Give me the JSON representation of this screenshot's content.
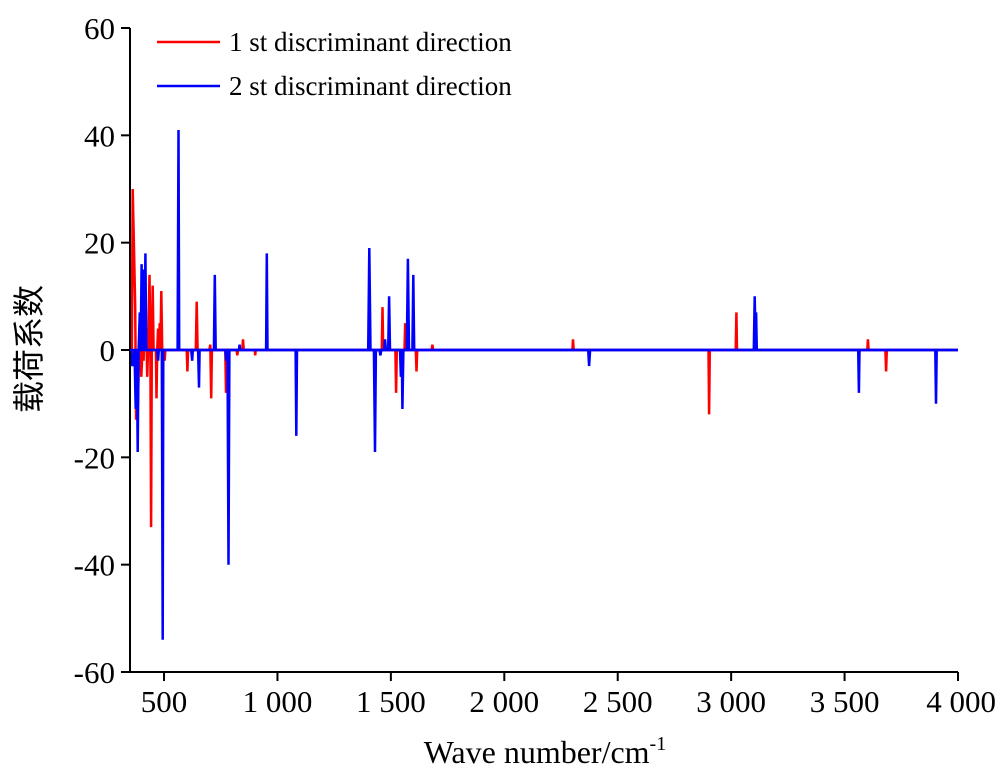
{
  "chart_data": {
    "type": "line",
    "title": "",
    "xlabel": "Wave number/cm",
    "xlabel_superscript": "-1",
    "ylabel": "载荷系数",
    "xlim": [
      350,
      4000
    ],
    "ylim": [
      -60,
      60
    ],
    "x_ticks": [
      500,
      1000,
      1500,
      2000,
      2500,
      3000,
      3500,
      4000
    ],
    "x_tick_labels": [
      "500",
      "1 000",
      "1 500",
      "2 000",
      "2 500",
      "3 000",
      "3 500",
      "4 000"
    ],
    "y_ticks": [
      60,
      40,
      20,
      0,
      -20,
      -40,
      -60
    ],
    "y_tick_labels": [
      "60",
      "40",
      "20",
      "0",
      "-20",
      "-40",
      "-60"
    ],
    "grid": false,
    "legend_position": "top-left",
    "series": [
      {
        "name": "1 st discriminant direction",
        "color": "#ff0000",
        "points": [
          [
            355,
            0
          ],
          [
            358,
            -2
          ],
          [
            362,
            30
          ],
          [
            368,
            18
          ],
          [
            373,
            8
          ],
          [
            377,
            -13
          ],
          [
            381,
            -3
          ],
          [
            385,
            -10
          ],
          [
            390,
            0
          ],
          [
            395,
            4
          ],
          [
            400,
            -5
          ],
          [
            405,
            0
          ],
          [
            410,
            -2
          ],
          [
            414,
            6
          ],
          [
            418,
            0
          ],
          [
            422,
            4
          ],
          [
            426,
            -5
          ],
          [
            430,
            0
          ],
          [
            436,
            14
          ],
          [
            440,
            0
          ],
          [
            443,
            -33
          ],
          [
            446,
            0
          ],
          [
            450,
            12
          ],
          [
            454,
            0
          ],
          [
            464,
            0
          ],
          [
            467,
            -9
          ],
          [
            470,
            0
          ],
          [
            474,
            4
          ],
          [
            477,
            0
          ],
          [
            481,
            5
          ],
          [
            484,
            0
          ],
          [
            488,
            11
          ],
          [
            492,
            0
          ],
          [
            500,
            0
          ],
          [
            503,
            -2
          ],
          [
            506,
            0
          ],
          [
            600,
            0
          ],
          [
            603,
            -4
          ],
          [
            606,
            0
          ],
          [
            640,
            0
          ],
          [
            644,
            9
          ],
          [
            648,
            0
          ],
          [
            700,
            0
          ],
          [
            704,
            1
          ],
          [
            708,
            -9
          ],
          [
            711,
            0
          ],
          [
            770,
            0
          ],
          [
            773,
            -8
          ],
          [
            776,
            0
          ],
          [
            820,
            0
          ],
          [
            823,
            -1
          ],
          [
            826,
            0
          ],
          [
            845,
            0
          ],
          [
            848,
            2
          ],
          [
            851,
            0
          ],
          [
            900,
            0
          ],
          [
            902,
            -1
          ],
          [
            904,
            0
          ],
          [
            1460,
            0
          ],
          [
            1463,
            8
          ],
          [
            1466,
            0
          ],
          [
            1520,
            0
          ],
          [
            1523,
            -8
          ],
          [
            1526,
            0
          ],
          [
            1560,
            0
          ],
          [
            1563,
            5
          ],
          [
            1566,
            0
          ],
          [
            1610,
            0
          ],
          [
            1613,
            -4
          ],
          [
            1616,
            0
          ],
          [
            1680,
            0
          ],
          [
            1683,
            1
          ],
          [
            1686,
            0
          ],
          [
            2300,
            0
          ],
          [
            2303,
            2
          ],
          [
            2306,
            0
          ],
          [
            2900,
            0
          ],
          [
            2903,
            -12
          ],
          [
            2906,
            0
          ],
          [
            3020,
            0
          ],
          [
            3023,
            7
          ],
          [
            3026,
            0
          ],
          [
            3600,
            0
          ],
          [
            3603,
            2
          ],
          [
            3606,
            0
          ],
          [
            3680,
            0
          ],
          [
            3683,
            -4
          ],
          [
            3686,
            0
          ],
          [
            4000,
            0
          ]
        ]
      },
      {
        "name": "2 st discriminant direction",
        "color": "#0000ff",
        "points": [
          [
            355,
            0
          ],
          [
            360,
            -3
          ],
          [
            365,
            -2
          ],
          [
            370,
            0
          ],
          [
            375,
            -11
          ],
          [
            380,
            0
          ],
          [
            384,
            -19
          ],
          [
            388,
            0
          ],
          [
            393,
            7
          ],
          [
            397,
            0
          ],
          [
            401,
            16
          ],
          [
            405,
            0
          ],
          [
            410,
            15
          ],
          [
            414,
            0
          ],
          [
            418,
            18
          ],
          [
            422,
            0
          ],
          [
            470,
            0
          ],
          [
            474,
            -2
          ],
          [
            477,
            0
          ],
          [
            490,
            0
          ],
          [
            494,
            -54
          ],
          [
            497,
            0
          ],
          [
            560,
            0
          ],
          [
            564,
            41
          ],
          [
            567,
            0
          ],
          [
            620,
            0
          ],
          [
            624,
            -2
          ],
          [
            627,
            0
          ],
          [
            650,
            0
          ],
          [
            654,
            -7
          ],
          [
            657,
            0
          ],
          [
            720,
            0
          ],
          [
            724,
            14
          ],
          [
            728,
            0
          ],
          [
            770,
            0
          ],
          [
            774,
            -2
          ],
          [
            777,
            0
          ],
          [
            780,
            0
          ],
          [
            784,
            -40
          ],
          [
            788,
            0
          ],
          [
            830,
            0
          ],
          [
            833,
            1
          ],
          [
            836,
            0
          ],
          [
            950,
            0
          ],
          [
            953,
            18
          ],
          [
            956,
            0
          ],
          [
            1080,
            0
          ],
          [
            1083,
            -16
          ],
          [
            1086,
            0
          ],
          [
            1400,
            0
          ],
          [
            1405,
            19
          ],
          [
            1410,
            0
          ],
          [
            1425,
            0
          ],
          [
            1430,
            -19
          ],
          [
            1434,
            0
          ],
          [
            1450,
            0
          ],
          [
            1454,
            -1
          ],
          [
            1458,
            0
          ],
          [
            1470,
            0
          ],
          [
            1474,
            2
          ],
          [
            1478,
            0
          ],
          [
            1488,
            0
          ],
          [
            1492,
            10
          ],
          [
            1496,
            0
          ],
          [
            1540,
            0
          ],
          [
            1544,
            -5
          ],
          [
            1548,
            0
          ],
          [
            1551,
            -11
          ],
          [
            1555,
            0
          ],
          [
            1570,
            0
          ],
          [
            1575,
            17
          ],
          [
            1580,
            0
          ],
          [
            1595,
            0
          ],
          [
            1599,
            14
          ],
          [
            1603,
            0
          ],
          [
            2370,
            0
          ],
          [
            2374,
            -3
          ],
          [
            2378,
            0
          ],
          [
            3100,
            0
          ],
          [
            3104,
            10
          ],
          [
            3108,
            0
          ],
          [
            3110,
            7
          ],
          [
            3113,
            0
          ],
          [
            3560,
            0
          ],
          [
            3563,
            -8
          ],
          [
            3566,
            0
          ],
          [
            3900,
            0
          ],
          [
            3903,
            -10
          ],
          [
            3906,
            0
          ],
          [
            4000,
            0
          ]
        ]
      }
    ]
  }
}
